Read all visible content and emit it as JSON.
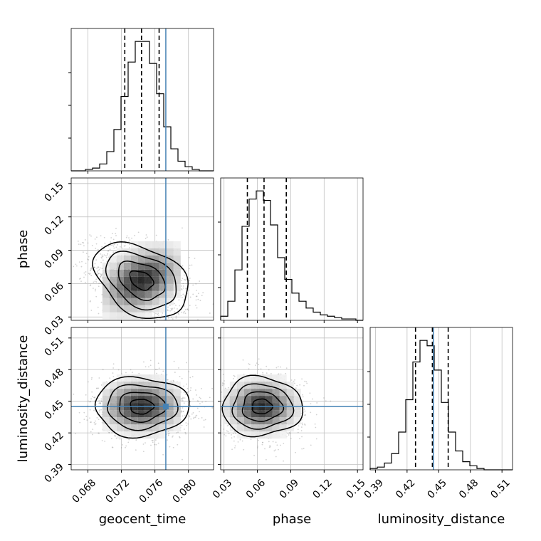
{
  "chart_data": {
    "type": "corner",
    "parameters": [
      "geocent_time",
      "phase",
      "luminosity_distance"
    ],
    "truths": {
      "geocent_time": 0.0773,
      "phase": null,
      "luminosity_distance": 0.445
    },
    "grid": true,
    "histograms": [
      {
        "parameter": "geocent_time",
        "range": [
          0.066,
          0.083
        ],
        "quantiles": [
          0.0724,
          0.0744,
          0.0765
        ],
        "counts": [
          0,
          0,
          1,
          2,
          5,
          14,
          30,
          54,
          79,
          94,
          94,
          78,
          56,
          32,
          16,
          7,
          3,
          1,
          0,
          0
        ]
      },
      {
        "parameter": "phase",
        "range": [
          0.027,
          0.155
        ],
        "ticks": [
          "0.03",
          "0.06",
          "0.09",
          "0.12",
          "0.15"
        ],
        "quantiles": [
          0.051,
          0.066,
          0.086
        ],
        "counts": [
          3,
          14,
          37,
          69,
          89,
          95,
          88,
          70,
          46,
          30,
          20,
          14,
          9,
          6,
          4,
          3,
          2,
          1,
          1,
          0
        ]
      },
      {
        "parameter": "luminosity_distance",
        "range": [
          0.385,
          0.52
        ],
        "ticks": [
          "0.39",
          "0.42",
          "0.45",
          "0.48",
          "0.51"
        ],
        "quantiles": [
          0.428,
          0.444,
          0.459
        ],
        "counts": [
          1,
          2,
          5,
          12,
          28,
          52,
          80,
          96,
          92,
          74,
          50,
          28,
          14,
          6,
          3,
          1,
          0,
          0,
          0,
          0
        ]
      }
    ],
    "pairs": [
      {
        "x": "geocent_time",
        "y": "phase",
        "mean": [
          0.0744,
          0.063
        ],
        "spread": [
          0.0028,
          0.017
        ],
        "correlation": -0.35
      },
      {
        "x": "geocent_time",
        "y": "luminosity_distance",
        "mean": [
          0.0744,
          0.445
        ],
        "spread": [
          0.0028,
          0.014
        ],
        "correlation": 0.0
      },
      {
        "x": "phase",
        "y": "luminosity_distance",
        "mean": [
          0.064,
          0.445
        ],
        "spread": [
          0.018,
          0.014
        ],
        "correlation": 0.0
      }
    ],
    "x_tick_labels": {
      "geocent_time": [
        "0.068",
        "0.072",
        "0.076",
        "0.080"
      ],
      "phase": [
        "0.03",
        "0.06",
        "0.09",
        "0.12",
        "0.15"
      ],
      "luminosity_distance": [
        "0.39",
        "0.42",
        "0.45",
        "0.48",
        "0.51"
      ]
    },
    "y_tick_labels": {
      "phase": [
        "0.03",
        "0.06",
        "0.09",
        "0.12",
        "0.15"
      ],
      "luminosity_distance": [
        "0.39",
        "0.42",
        "0.45",
        "0.48",
        "0.51"
      ]
    },
    "xlabels": [
      "geocent_time",
      "phase",
      "luminosity_distance"
    ],
    "ylabels": [
      "phase",
      "luminosity_distance"
    ],
    "colors": {
      "truth": "#4682b4",
      "hist": "#000000",
      "quantile": "#000000",
      "grid": "#c0c0c0",
      "points": "#7f7f7f"
    }
  }
}
